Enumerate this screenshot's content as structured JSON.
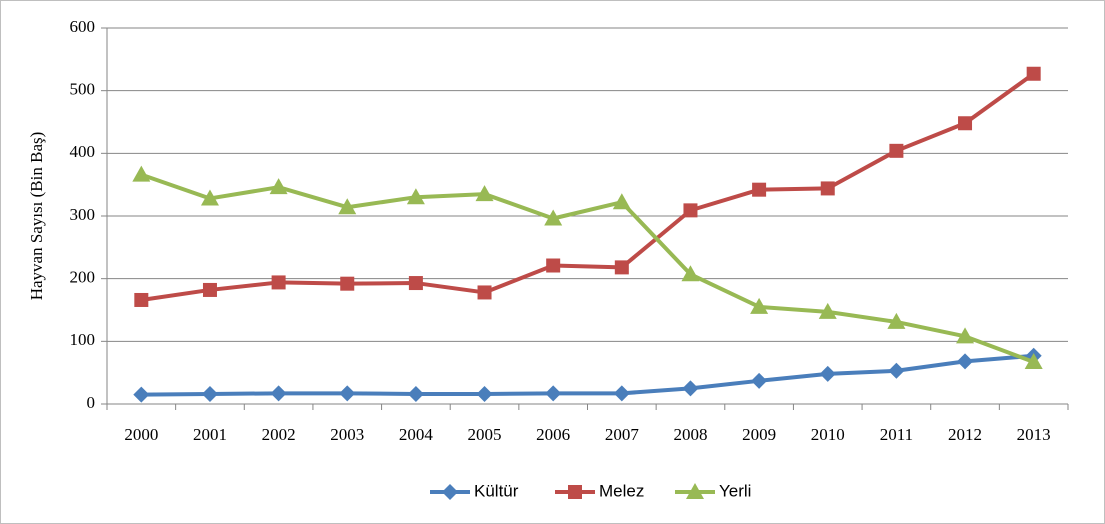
{
  "chart_data": {
    "type": "line",
    "y_label": "Hayvan Sayısı (Bin Baş)",
    "categories": [
      "2000",
      "2001",
      "2002",
      "2003",
      "2004",
      "2005",
      "2006",
      "2007",
      "2008",
      "2009",
      "2010",
      "2011",
      "2012",
      "2013"
    ],
    "series": [
      {
        "name": "Kültür",
        "color": "#4a7ebb",
        "marker": "diamond",
        "values": [
          15,
          16,
          17,
          17,
          16,
          16,
          17,
          17,
          25,
          37,
          48,
          53,
          68,
          77
        ]
      },
      {
        "name": "Melez",
        "color": "#be4b48",
        "marker": "square",
        "values": [
          166,
          182,
          194,
          192,
          193,
          178,
          221,
          218,
          309,
          342,
          344,
          404,
          448,
          527
        ]
      },
      {
        "name": "Yerli",
        "color": "#98b954",
        "marker": "triangle",
        "values": [
          366,
          328,
          346,
          314,
          330,
          335,
          296,
          322,
          207,
          155,
          147,
          131,
          108,
          67
        ]
      }
    ],
    "ylim": [
      0,
      600
    ],
    "yticks": [
      0,
      100,
      200,
      300,
      400,
      500,
      600
    ],
    "grid": true,
    "legend": "bottom"
  }
}
